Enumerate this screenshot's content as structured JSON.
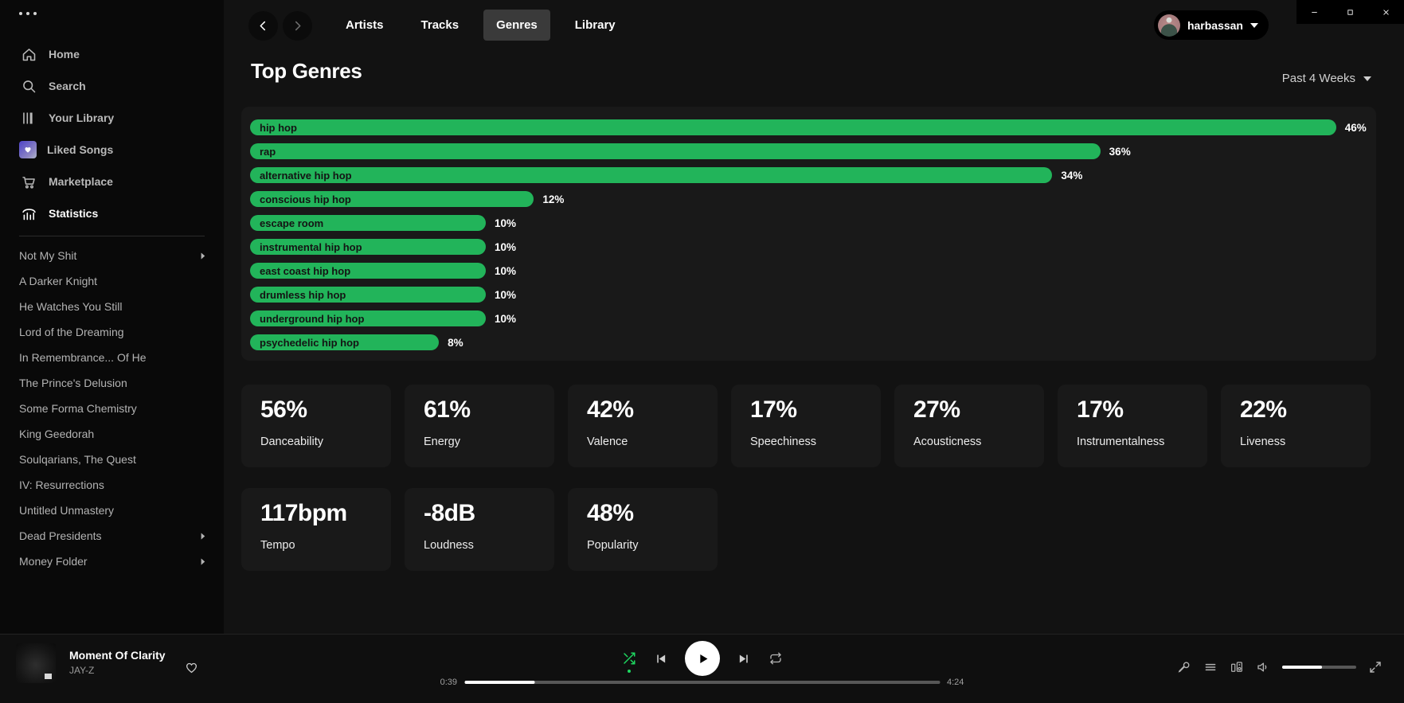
{
  "colors": {
    "spotify_green": "#1ed760",
    "bar_green": "#22b45a",
    "background": "#121212",
    "panel": "#191919"
  },
  "window": {
    "controls": [
      "minimize",
      "maximize",
      "close"
    ]
  },
  "sidebar": {
    "nav": [
      {
        "label": "Home",
        "icon": "home"
      },
      {
        "label": "Search",
        "icon": "search"
      },
      {
        "label": "Your Library",
        "icon": "library"
      },
      {
        "label": "Liked Songs",
        "icon": "liked"
      },
      {
        "label": "Marketplace",
        "icon": "cart"
      },
      {
        "label": "Statistics",
        "icon": "stats",
        "active": true
      }
    ],
    "playlists": [
      {
        "label": "Not My Shit",
        "expandable": true
      },
      {
        "label": "A Darker Knight"
      },
      {
        "label": "He Watches You Still"
      },
      {
        "label": "Lord of the Dreaming"
      },
      {
        "label": "In Remembrance... Of He"
      },
      {
        "label": "The Prince's Delusion"
      },
      {
        "label": "Some Forma Chemistry"
      },
      {
        "label": "King Geedorah"
      },
      {
        "label": "Soulqarians, The Quest"
      },
      {
        "label": "IV: Resurrections"
      },
      {
        "label": "Untitled Unmastery"
      },
      {
        "label": "Dead Presidents",
        "expandable": true
      },
      {
        "label": "Money Folder",
        "expandable": true
      }
    ]
  },
  "topbar": {
    "tabs": [
      {
        "label": "Artists"
      },
      {
        "label": "Tracks"
      },
      {
        "label": "Genres",
        "active": true
      },
      {
        "label": "Library"
      }
    ],
    "user": "harbassan"
  },
  "page": {
    "title": "Top Genres",
    "time_range": "Past 4 Weeks"
  },
  "chart_data": {
    "type": "bar",
    "orientation": "horizontal",
    "title": "Top Genres",
    "time_range": "Past 4 Weeks",
    "categories": [
      "hip hop",
      "rap",
      "alternative hip hop",
      "conscious hip hop",
      "escape room",
      "instrumental hip hop",
      "east coast hip hop",
      "drumless hip hop",
      "underground hip hop",
      "psychedelic hip hop"
    ],
    "values": [
      46,
      36,
      34,
      12,
      10,
      10,
      10,
      10,
      10,
      8
    ],
    "value_labels": [
      "46%",
      "36%",
      "34%",
      "12%",
      "10%",
      "10%",
      "10%",
      "10%",
      "10%",
      "8%"
    ],
    "unit": "percent",
    "max_value": 46,
    "bar_color": "#22b45a"
  },
  "stats": {
    "cards": [
      {
        "value": "56%",
        "label": "Danceability"
      },
      {
        "value": "61%",
        "label": "Energy"
      },
      {
        "value": "42%",
        "label": "Valence"
      },
      {
        "value": "17%",
        "label": "Speechiness"
      },
      {
        "value": "27%",
        "label": "Acousticness"
      },
      {
        "value": "17%",
        "label": "Instrumentalness"
      },
      {
        "value": "22%",
        "label": "Liveness"
      },
      {
        "value": "117bpm",
        "label": "Tempo"
      },
      {
        "value": "-8dB",
        "label": "Loudness"
      },
      {
        "value": "48%",
        "label": "Popularity"
      }
    ]
  },
  "player": {
    "track": {
      "title": "Moment Of Clarity",
      "artist": "JAY-Z"
    },
    "elapsed": "0:39",
    "duration": "4:24",
    "progress_pct": 14.8,
    "volume_pct": 54,
    "shuffle_active": true,
    "controls": [
      "shuffle",
      "previous",
      "play",
      "next",
      "repeat"
    ],
    "right_controls": [
      "lyrics-mic",
      "queue",
      "devices",
      "volume",
      "volume-slider",
      "fullscreen"
    ]
  }
}
